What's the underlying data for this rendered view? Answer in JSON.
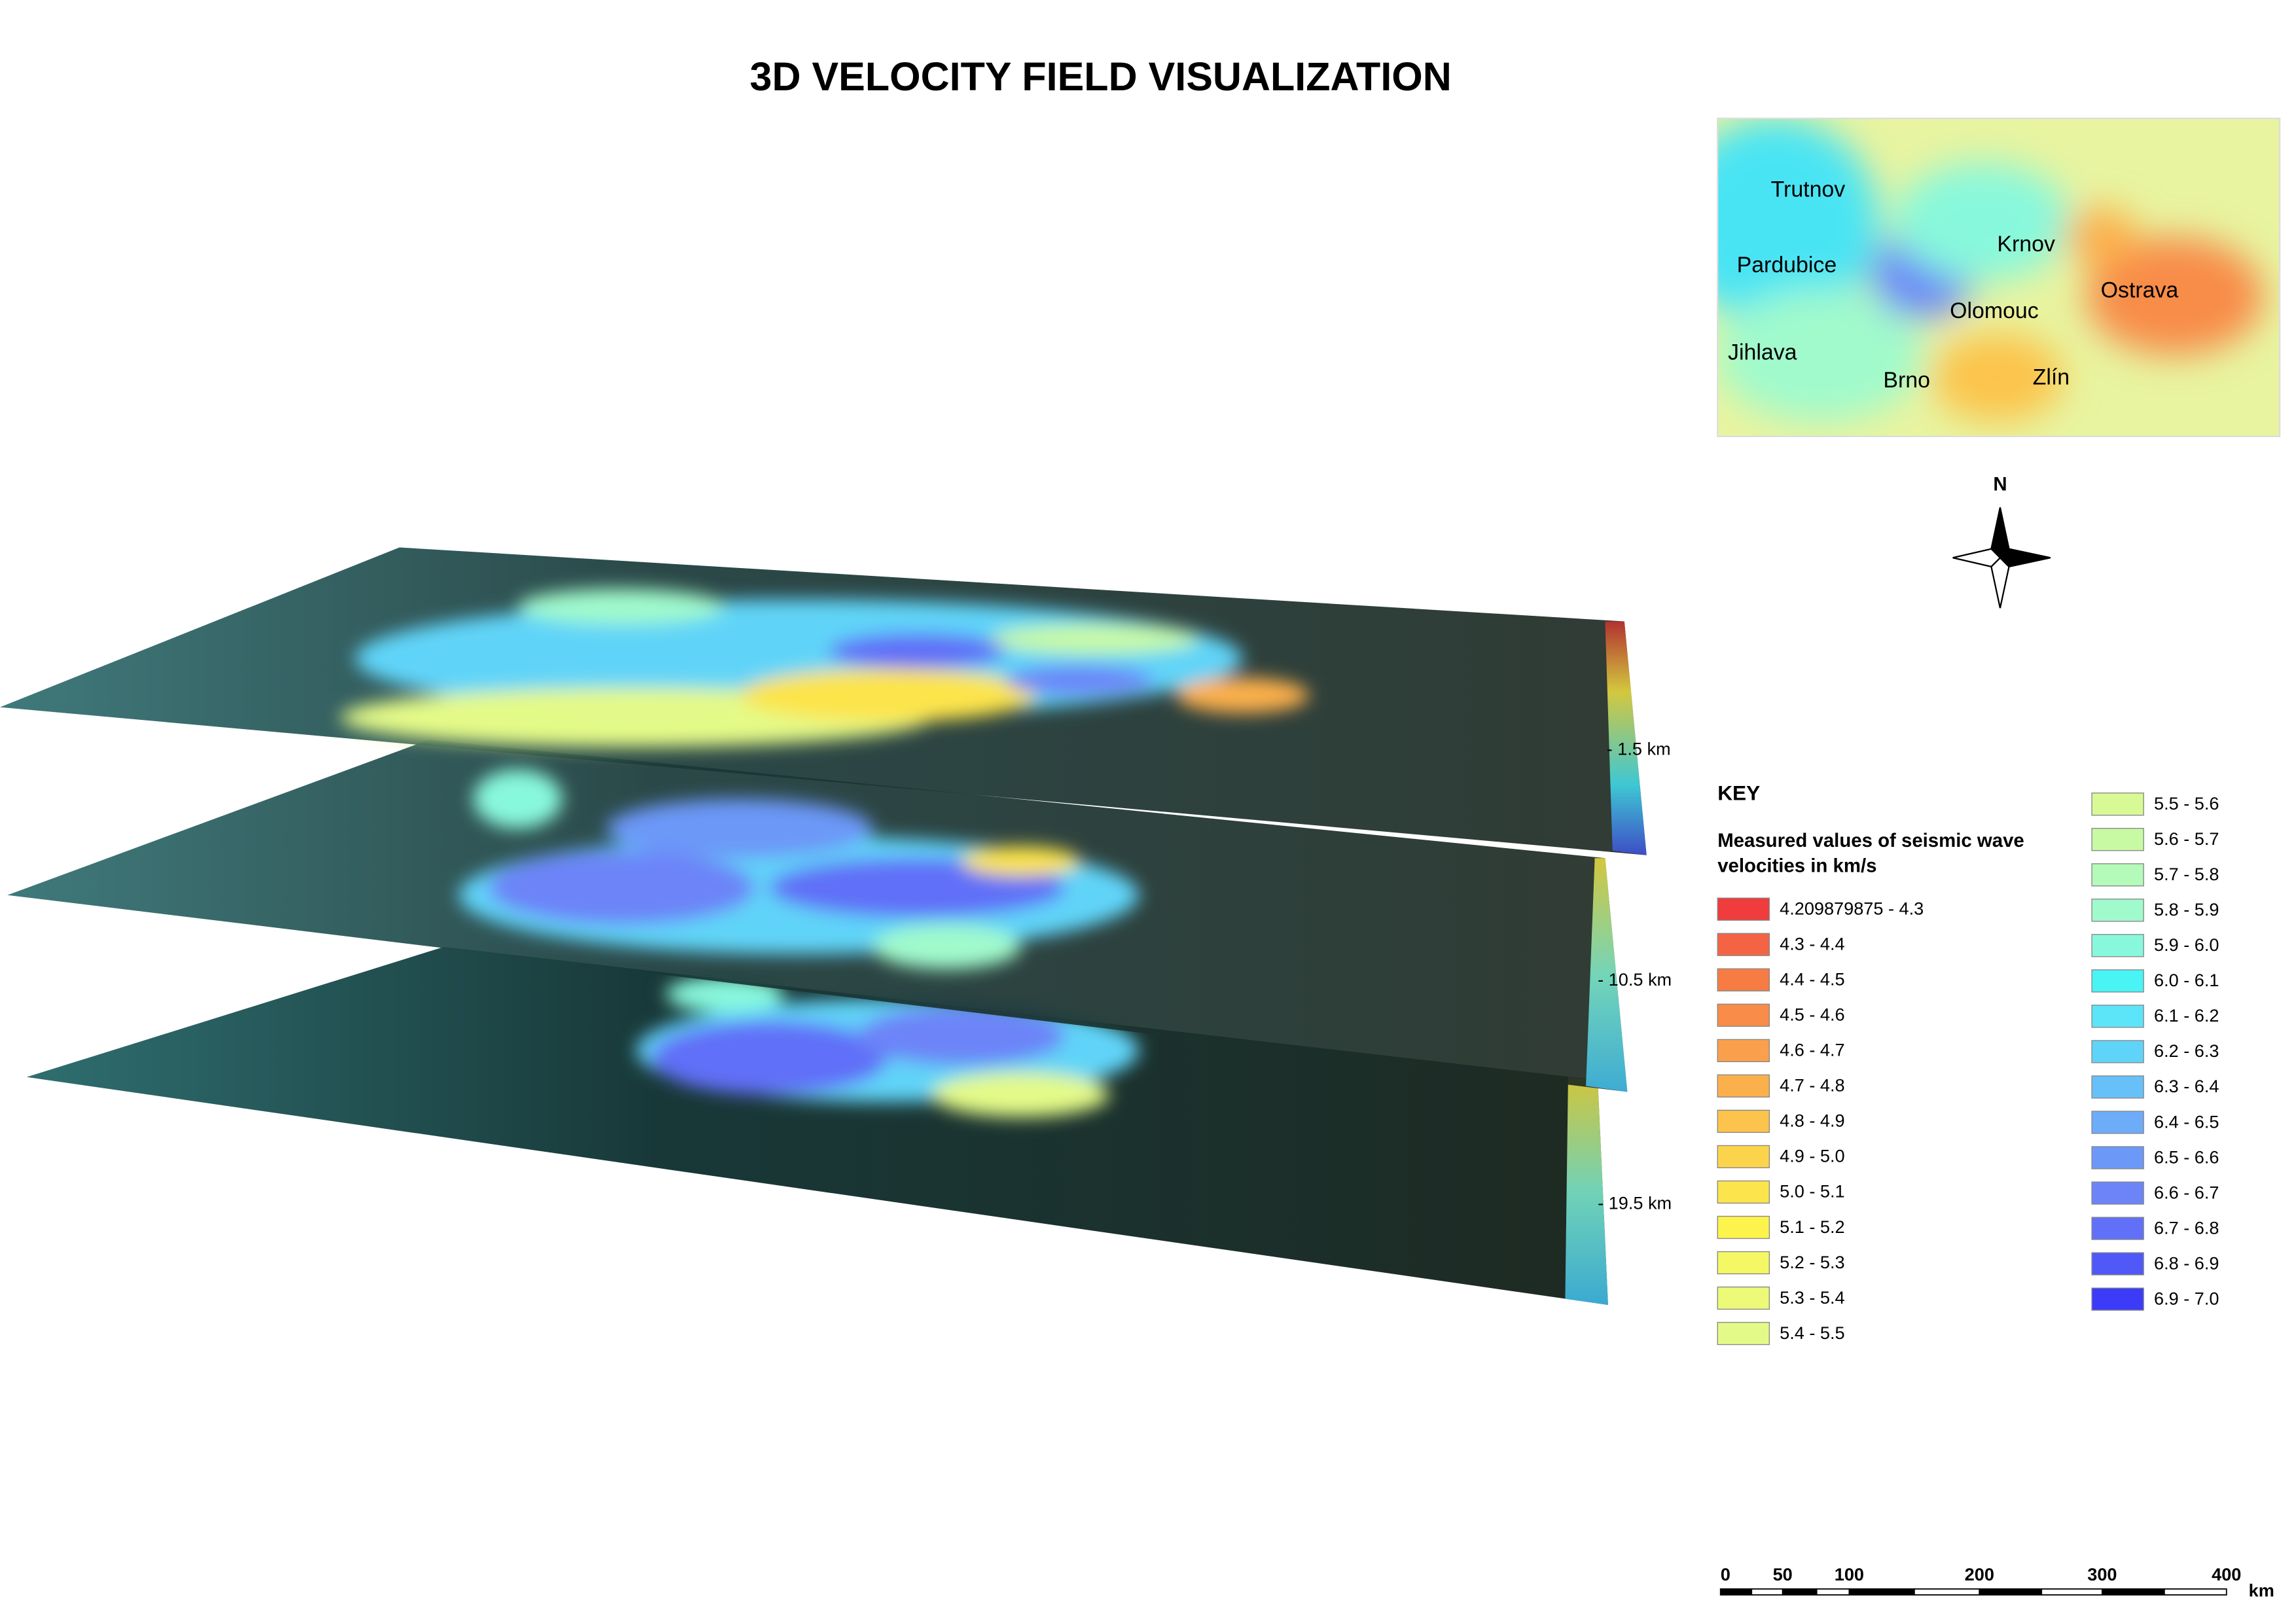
{
  "title": "3D VELOCITY FIELD VISUALIZATION",
  "inset_map": {
    "cities": [
      "Trutnov",
      "Krnov",
      "Pardubice",
      "Ostrava",
      "Olomouc",
      "Jihlava",
      "Brno",
      "Zlín"
    ]
  },
  "north_label": "N",
  "depth_labels": [
    "- 1.5 km",
    "- 10.5 km",
    "- 19.5 km"
  ],
  "key": {
    "title": "KEY",
    "subtitle": [
      "Measured values of seismic wave",
      "velocities in km/s"
    ],
    "items": [
      {
        "label": "4.209879875 - 4.3",
        "color": "#f03c3c"
      },
      {
        "label": "4.3 - 4.4",
        "color": "#f46444"
      },
      {
        "label": "4.4 - 4.5",
        "color": "#f67c44"
      },
      {
        "label": "4.5 - 4.6",
        "color": "#f88c48"
      },
      {
        "label": "4.6 - 4.7",
        "color": "#faa04c"
      },
      {
        "label": "4.7 - 4.8",
        "color": "#fcb04c"
      },
      {
        "label": "4.8 - 4.9",
        "color": "#fcc44c"
      },
      {
        "label": "4.9 - 5.0",
        "color": "#fcd44c"
      },
      {
        "label": "5.0 - 5.1",
        "color": "#fce44c"
      },
      {
        "label": "5.1 - 5.2",
        "color": "#fcf44c"
      },
      {
        "label": "5.2 - 5.3",
        "color": "#f4f864"
      },
      {
        "label": "5.3 - 5.4",
        "color": "#ecfa78"
      },
      {
        "label": "5.4 - 5.5",
        "color": "#e4fa88"
      },
      {
        "label": "5.5 - 5.6",
        "color": "#d8fa94"
      },
      {
        "label": "5.6 - 5.7",
        "color": "#c8faa4"
      },
      {
        "label": "5.7 - 5.8",
        "color": "#b4fab8"
      },
      {
        "label": "5.8 - 5.9",
        "color": "#a0facc"
      },
      {
        "label": "5.9 - 6.0",
        "color": "#88f8dc"
      },
      {
        "label": "6.0 - 6.1",
        "color": "#48f4f4"
      },
      {
        "label": "6.1 - 6.2",
        "color": "#5ce4f8"
      },
      {
        "label": "6.2 - 6.3",
        "color": "#60d4f8"
      },
      {
        "label": "6.3 - 6.4",
        "color": "#68c0f8"
      },
      {
        "label": "6.4 - 6.5",
        "color": "#6cacf8"
      },
      {
        "label": "6.5 - 6.6",
        "color": "#6c98f8"
      },
      {
        "label": "6.6 - 6.7",
        "color": "#6c84f8"
      },
      {
        "label": "6.7 - 6.8",
        "color": "#6070f8"
      },
      {
        "label": "6.8 - 6.9",
        "color": "#5058f8"
      },
      {
        "label": "6.9 - 7.0",
        "color": "#3c3cf8"
      }
    ]
  },
  "scale_bar": {
    "labels": [
      "0",
      "50",
      "100",
      "200",
      "300",
      "400"
    ],
    "unit": "km"
  }
}
